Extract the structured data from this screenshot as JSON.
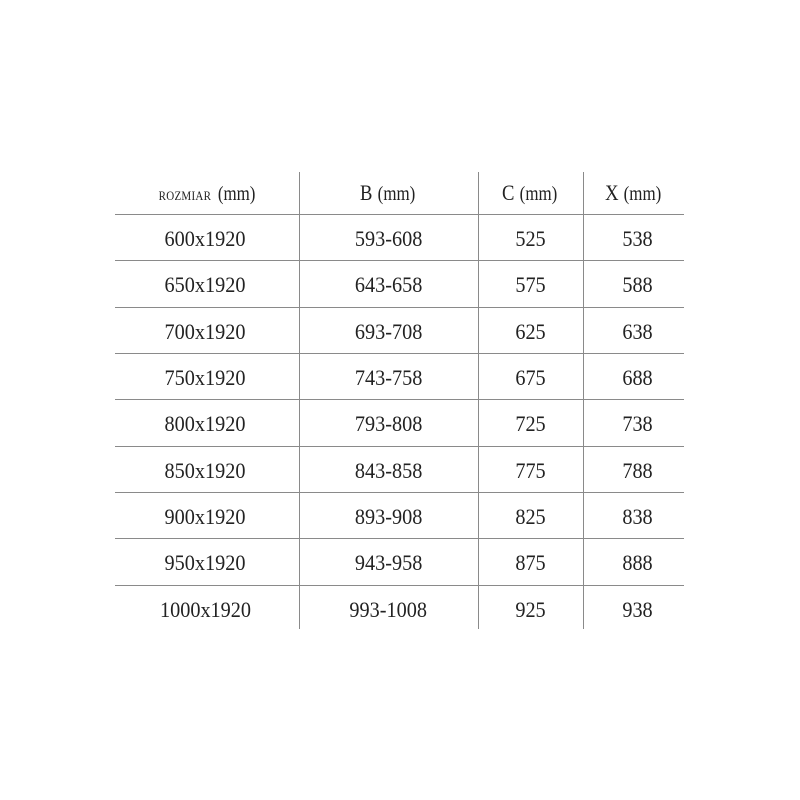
{
  "table": {
    "headers": [
      {
        "label": "ROZMIAR",
        "unit": "(mm)"
      },
      {
        "label": "B",
        "unit": "(mm)"
      },
      {
        "label": "C",
        "unit": "(mm)"
      },
      {
        "label": "X",
        "unit": "(mm)"
      }
    ],
    "rows": [
      [
        "600x1920",
        "593-608",
        "525",
        "538"
      ],
      [
        "650x1920",
        "643-658",
        "575",
        "588"
      ],
      [
        "700x1920",
        "693-708",
        "625",
        "638"
      ],
      [
        "750x1920",
        "743-758",
        "675",
        "688"
      ],
      [
        "800x1920",
        "793-808",
        "725",
        "738"
      ],
      [
        "850x1920",
        "843-858",
        "775",
        "788"
      ],
      [
        "900x1920",
        "893-908",
        "825",
        "838"
      ],
      [
        "950x1920",
        "943-958",
        "875",
        "888"
      ],
      [
        "1000x1920",
        "993-1008",
        "925",
        "938"
      ]
    ]
  }
}
